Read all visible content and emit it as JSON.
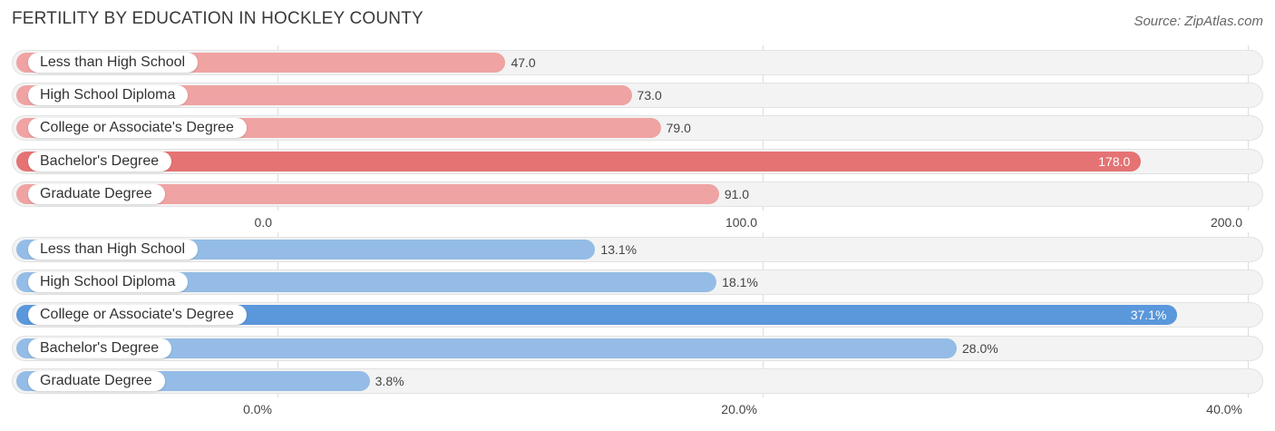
{
  "title": "FERTILITY BY EDUCATION IN HOCKLEY COUNTY",
  "source": "Source: ZipAtlas.com",
  "colors": {
    "panel1_bar": "#efa3a3",
    "panel1_highlight": "#e57373",
    "panel2_bar": "#94bce6",
    "panel2_highlight": "#5a97db"
  },
  "chart_data": [
    {
      "type": "bar",
      "orientation": "horizontal",
      "categories": [
        "Less than High School",
        "High School Diploma",
        "College or Associate's Degree",
        "Bachelor's Degree",
        "Graduate Degree"
      ],
      "values": [
        47.0,
        73.0,
        79.0,
        178.0,
        91.0
      ],
      "value_labels": [
        "47.0",
        "73.0",
        "79.0",
        "178.0",
        "91.0"
      ],
      "highlight_index": 3,
      "xlim": [
        0,
        200
      ],
      "ticks": [
        0,
        100,
        200
      ],
      "tick_labels": [
        "0.0",
        "100.0",
        "200.0"
      ],
      "grid": true
    },
    {
      "type": "bar",
      "orientation": "horizontal",
      "categories": [
        "Less than High School",
        "High School Diploma",
        "College or Associate's Degree",
        "Bachelor's Degree",
        "Graduate Degree"
      ],
      "values": [
        13.1,
        18.1,
        37.1,
        28.0,
        3.8
      ],
      "value_labels": [
        "13.1%",
        "18.1%",
        "37.1%",
        "28.0%",
        "3.8%"
      ],
      "highlight_index": 2,
      "xlim": [
        0,
        40
      ],
      "ticks": [
        0,
        20,
        40
      ],
      "tick_labels": [
        "0.0%",
        "20.0%",
        "40.0%"
      ],
      "grid": true
    }
  ]
}
